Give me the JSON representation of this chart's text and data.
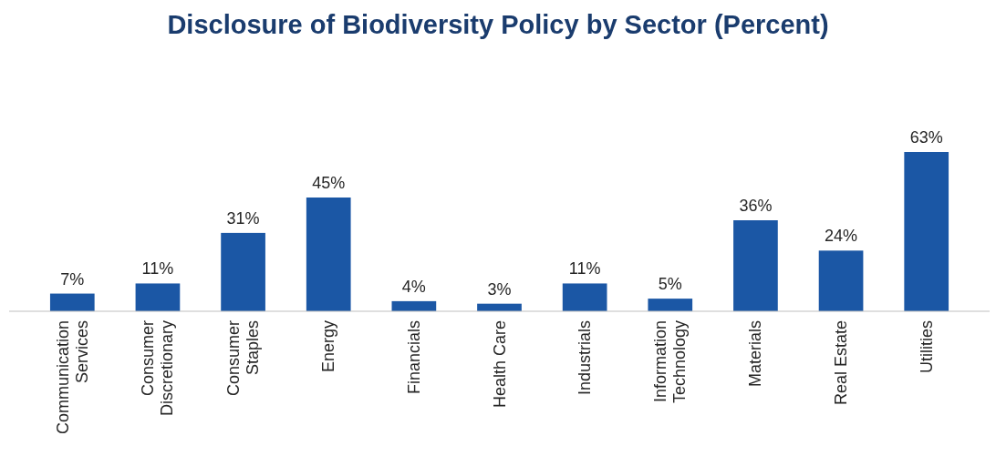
{
  "chart_data": {
    "type": "bar",
    "title": "Disclosure of Biodiversity Policy by Sector (Percent)",
    "categories": [
      "Communication Services",
      "Consumer Discretionary",
      "Consumer Staples",
      "Energy",
      "Financials",
      "Health Care",
      "Industrials",
      "Information Technology",
      "Materials",
      "Real Estate",
      "Utilities"
    ],
    "values": [
      7,
      11,
      31,
      45,
      4,
      3,
      11,
      5,
      36,
      24,
      63
    ],
    "value_labels": [
      "7%",
      "11%",
      "31%",
      "45%",
      "4%",
      "3%",
      "11%",
      "5%",
      "36%",
      "24%",
      "63%"
    ],
    "color": "#1b57a5",
    "relative": false
  }
}
